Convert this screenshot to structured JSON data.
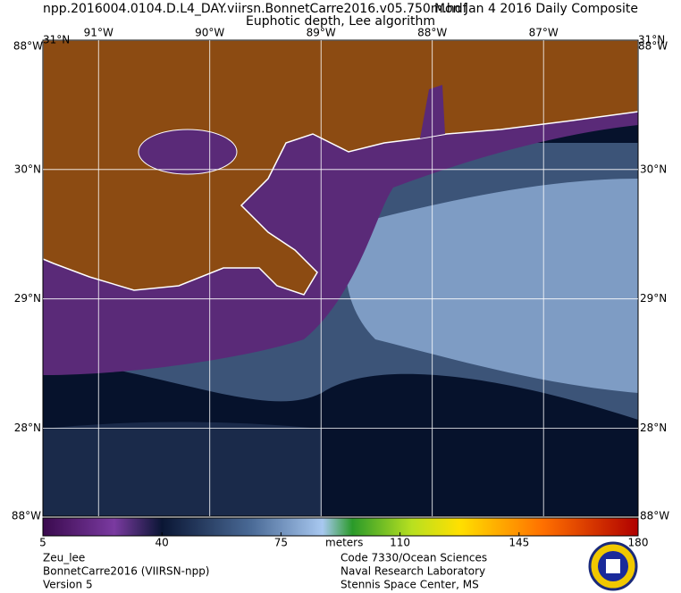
{
  "header": {
    "filename": "npp.2016004.0104.D.L4_DAY.viirsn.BonnetCarre2016.v05.750m.hdf",
    "date": "Mon Jan  4 2016 Daily Composite",
    "product": "Euphotic depth, Lee algorithm"
  },
  "map": {
    "lon_range": [
      -91.5,
      -86.15
    ],
    "lat_range": [
      27.32,
      31.0
    ],
    "lon_lines": [
      {
        "value": -91,
        "label": "91°W"
      },
      {
        "value": -90,
        "label": "90°W"
      },
      {
        "value": -89,
        "label": "89°W"
      },
      {
        "value": -88,
        "label": "88°W"
      },
      {
        "value": -87,
        "label": "87°W"
      }
    ],
    "lat_lines": [
      {
        "value": 30,
        "label": "30°N"
      },
      {
        "value": 29,
        "label": "29°N"
      },
      {
        "value": 28,
        "label": "28°N"
      }
    ],
    "corner_labels": {
      "top": "31°N",
      "side": "88°W"
    }
  },
  "colorbar": {
    "range": [
      5,
      180
    ],
    "ticks": [
      5,
      40,
      75,
      110,
      145,
      180
    ],
    "unit": "meters"
  },
  "footer": {
    "left": [
      "Zeu_lee",
      "BonnetCarre2016 (VIIRSN-npp)",
      "Version 5"
    ],
    "right": [
      "Code 7330/Ocean Sciences",
      "Naval Research Laboratory",
      "Stennis Space Center, MS"
    ]
  }
}
